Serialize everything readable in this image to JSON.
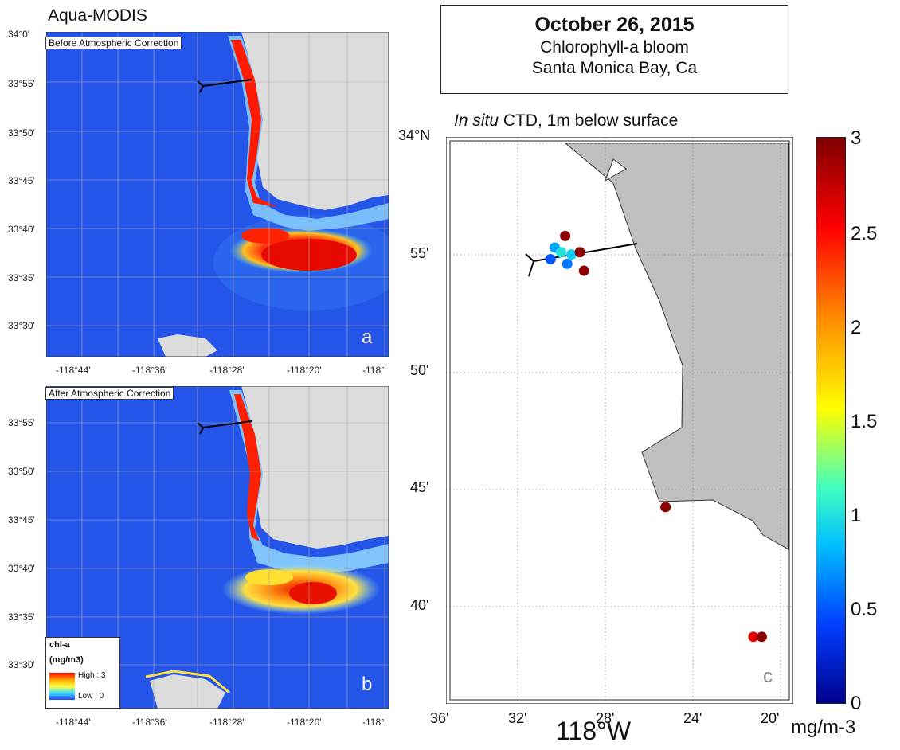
{
  "figure": {
    "sensor_label": "Aqua-MODIS",
    "title": {
      "date": "October 26, 2015",
      "line2": "Chlorophyll-a bloom",
      "line3": "Santa Monica Bay, Ca"
    }
  },
  "panel_a": {
    "label": "Before Atmospheric Correction",
    "letter": "a",
    "lat_ticks": [
      "34°0'",
      "33°55'",
      "33°50'",
      "33°45'",
      "33°40'",
      "33°35'",
      "33°30'"
    ],
    "lon_ticks": [
      "-118°44'",
      "-118°36'",
      "-118°28'",
      "-118°20'",
      "-118°"
    ]
  },
  "panel_b": {
    "label": "After Atmospheric Correction",
    "letter": "b",
    "lat_ticks": [
      "33°55'",
      "33°50'",
      "33°45'",
      "33°40'",
      "33°35'",
      "33°30'"
    ],
    "lon_ticks": [
      "-118°44'",
      "-118°36'",
      "-118°28'",
      "-118°20'",
      "-118°"
    ],
    "legend": {
      "title": "chl-a",
      "units": "(mg/m3)",
      "high": "High : 3",
      "low": "Low : 0"
    }
  },
  "panel_c": {
    "subtitle_italic": "In situ",
    "subtitle_rest": " CTD, 1m below surface",
    "letter": "c",
    "lat_ticks": [
      "34°N",
      "55'",
      "50'",
      "45'",
      "40'"
    ],
    "lon_ticks": [
      "36'",
      "32'",
      "28'",
      "24'",
      "20'"
    ],
    "lon_center_label": "118°W",
    "stations": [
      {
        "lon_min": 30.3,
        "lat_min": 56.0,
        "chl": 2.95
      },
      {
        "lon_min": 30.8,
        "lat_min": 55.5,
        "chl": 0.75
      },
      {
        "lon_min": 30.5,
        "lat_min": 55.3,
        "chl": 1.0
      },
      {
        "lon_min": 30.0,
        "lat_min": 55.2,
        "chl": 0.9
      },
      {
        "lon_min": 29.6,
        "lat_min": 55.3,
        "chl": 2.95
      },
      {
        "lon_min": 31.0,
        "lat_min": 55.0,
        "chl": 0.5
      },
      {
        "lon_min": 30.2,
        "lat_min": 54.8,
        "chl": 0.6
      },
      {
        "lon_min": 29.4,
        "lat_min": 54.5,
        "chl": 2.95
      },
      {
        "lon_min": 25.5,
        "lat_min": 44.3,
        "chl": 2.95
      },
      {
        "lon_min": 21.3,
        "lat_min": 38.7,
        "chl": 2.6
      },
      {
        "lon_min": 20.9,
        "lat_min": 38.7,
        "chl": 2.95
      }
    ]
  },
  "colorbar": {
    "ticks": [
      "3",
      "2.5",
      "2",
      "1.5",
      "1",
      "0.5",
      "0"
    ],
    "units": "mg/m-3"
  }
}
